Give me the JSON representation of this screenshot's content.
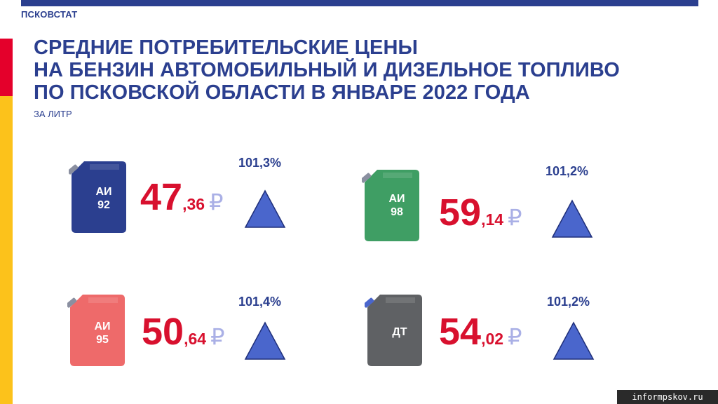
{
  "header": {
    "org": "ПСКОВСТАТ",
    "title_lines": [
      "СРЕДНИЕ ПОТРЕБИТЕЛЬСКИЕ ЦЕНЫ",
      "НА БЕНЗИН АВТОМОБИЛЬНЫЙ И ДИЗЕЛЬНОЕ ТОПЛИВО",
      "ПО ПСКОВСКОЙ ОБЛАСТИ В ЯНВАРЕ 2022 ГОДА"
    ],
    "unit": "ЗА ЛИТР"
  },
  "colors": {
    "brand": "#2b3f8f",
    "accent_red": "#e4002b",
    "accent_yellow": "#fcc21b",
    "price": "#d8102e",
    "triangle": "#4a66cc"
  },
  "fuels": [
    {
      "label_line1": "АИ",
      "label_line2": "92",
      "price_int": "47",
      "price_dec": ",36",
      "currency": "₽",
      "index": "101,3%",
      "can_color": "#2b3f8f",
      "icon": "fuel-canister-icon",
      "trend_icon": "triangle-up-icon"
    },
    {
      "label_line1": "АИ",
      "label_line2": "98",
      "price_int": "59",
      "price_dec": ",14",
      "currency": "₽",
      "index": "101,2%",
      "can_color": "#3f9e64",
      "icon": "fuel-canister-icon",
      "trend_icon": "triangle-up-icon"
    },
    {
      "label_line1": "АИ",
      "label_line2": "95",
      "price_int": "50",
      "price_dec": ",64",
      "currency": "₽",
      "index": "101,4%",
      "can_color": "#ee6a6a",
      "icon": "fuel-canister-icon",
      "trend_icon": "triangle-up-icon"
    },
    {
      "label_line1": "ДТ",
      "label_line2": "",
      "price_int": "54",
      "price_dec": ",02",
      "currency": "₽",
      "index": "101,2%",
      "can_color": "#5f6164",
      "icon": "fuel-canister-icon",
      "trend_icon": "triangle-up-icon"
    }
  ],
  "watermark": "informpskov.ru"
}
